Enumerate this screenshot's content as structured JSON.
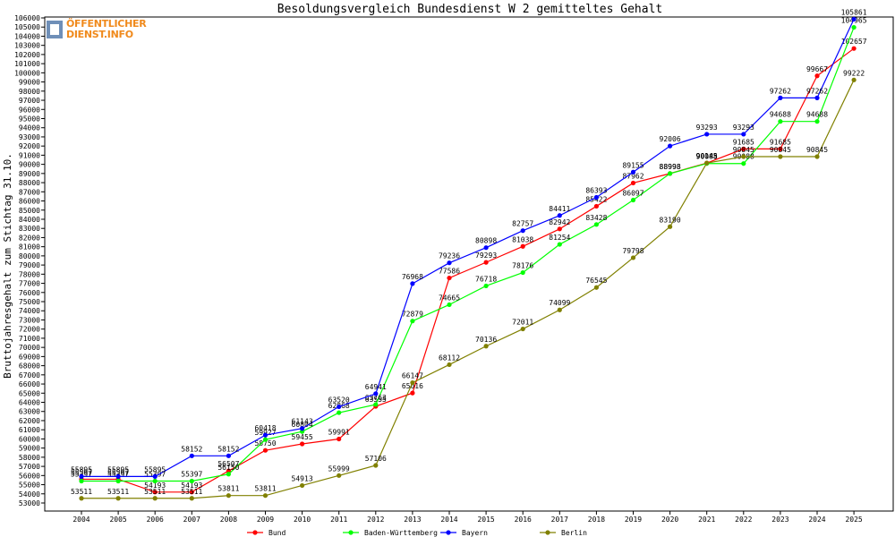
{
  "brand": {
    "logo_line1": "ÖFFENTLICHER",
    "logo_line2": "DIENST.INFO",
    "logo_colors": {
      "box": "#6f8fb8",
      "text": "#f08a1c"
    }
  },
  "chart_data": {
    "type": "line",
    "title": "Besoldungsvergleich Bundesdienst W 2 gemitteltes Gehalt",
    "xlabel": "",
    "ylabel": "Bruttojahresgehalt zum Stichtag 31.10.",
    "x": [
      "2004",
      "2005",
      "2006",
      "2007",
      "2008",
      "2009",
      "2010",
      "2011",
      "2012",
      "2013",
      "2014",
      "2015",
      "2016",
      "2017",
      "2018",
      "2019",
      "2020",
      "2021",
      "2022",
      "2023",
      "2024",
      "2025"
    ],
    "ylim": [
      53000,
      106000
    ],
    "ytick_step": 1000,
    "grid": false,
    "legend_position": "bottom",
    "series": [
      {
        "name": "Bund",
        "color": "#ff0000",
        "values": [
          55597,
          55597,
          54193,
          54193,
          56507,
          58750,
          59455,
          59991,
          63555,
          65016,
          77586,
          79293,
          81038,
          82942,
          85422,
          87962,
          88998,
          90145,
          91685,
          91685,
          99667,
          102657
        ]
      },
      {
        "name": "Baden-Württemberg",
        "color": "#00ff00",
        "values": [
          55397,
          55397,
          55397,
          55397,
          56150,
          59927,
          60804,
          62868,
          63763,
          72879,
          74665,
          76718,
          78176,
          81254,
          83428,
          86097,
          88998,
          90088,
          90088,
          94688,
          94688,
          104965
        ]
      },
      {
        "name": "Bayern",
        "color": "#0000ff",
        "values": [
          55895,
          55895,
          55895,
          58152,
          58152,
          60418,
          61143,
          63520,
          64941,
          76968,
          79236,
          80898,
          82757,
          84411,
          86393,
          89155,
          92006,
          93293,
          93293,
          97262,
          97262,
          105861
        ]
      },
      {
        "name": "Berlin",
        "color": "#808000",
        "values": [
          53511,
          53511,
          53511,
          53511,
          53811,
          53811,
          54913,
          55999,
          57106,
          66147,
          68112,
          70136,
          72011,
          74099,
          76545,
          79798,
          83190,
          90145,
          90845,
          90845,
          90845,
          99222
        ]
      }
    ]
  }
}
